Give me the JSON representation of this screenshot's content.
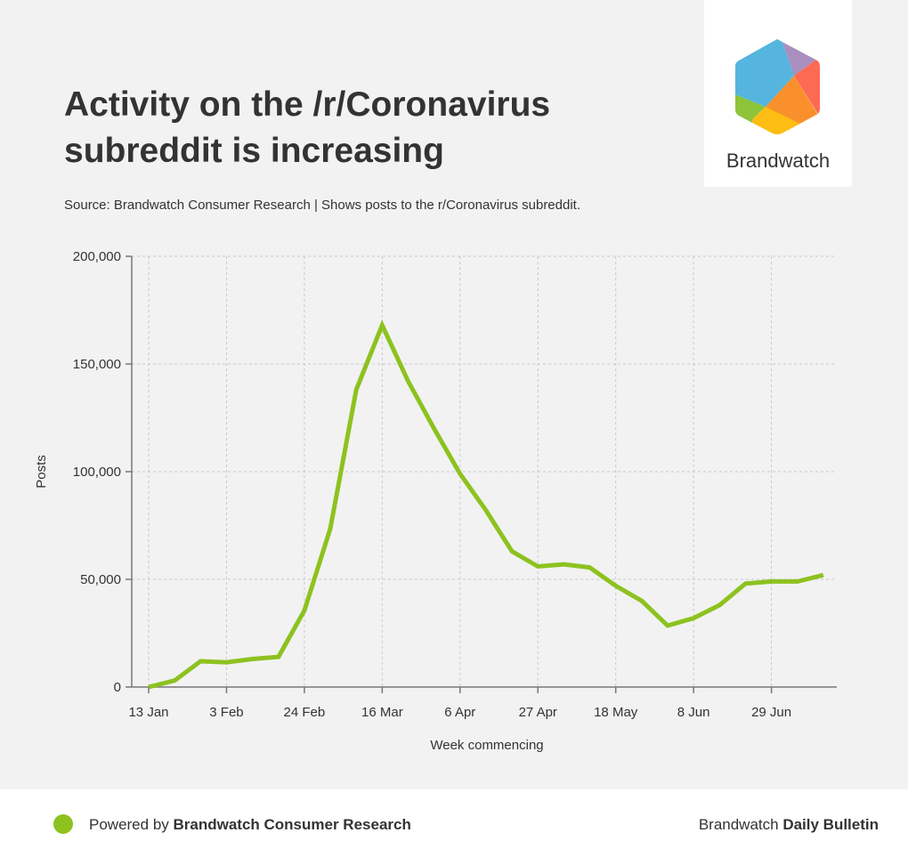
{
  "header": {
    "title": "Activity on the /r/Coronavirus subreddit is increasing",
    "source": "Source: Brandwatch Consumer Research | Shows posts to the r/Coronavirus subreddit."
  },
  "logo": {
    "text": "Brandwatch"
  },
  "footer": {
    "powered_prefix": "Powered by ",
    "powered_brand": "Brandwatch Consumer Research",
    "bulletin_prefix": "Brandwatch ",
    "bulletin_bold": "Daily Bulletin"
  },
  "colors": {
    "line": "#8dc21f",
    "grid": "#c8c8c8",
    "axis": "#777777"
  },
  "chart_data": {
    "type": "line",
    "title": "Activity on the /r/Coronavirus subreddit is increasing",
    "xlabel": "Week commencing",
    "ylabel": "Posts",
    "ylim": [
      0,
      200000
    ],
    "yticks": [
      0,
      50000,
      100000,
      150000,
      200000
    ],
    "ytick_labels": [
      "0",
      "50,000",
      "100,000",
      "150,000",
      "200,000"
    ],
    "xtick_labels": [
      "13 Jan",
      "3 Feb",
      "24 Feb",
      "16 Mar",
      "6 Apr",
      "27 Apr",
      "18 May",
      "8 Jun",
      "29 Jun"
    ],
    "xtick_every_weeks": 3,
    "grid": true,
    "series": [
      {
        "name": "Posts",
        "values": [
          0,
          3000,
          12000,
          11500,
          13000,
          14000,
          35500,
          73500,
          138000,
          168000,
          142000,
          120000,
          99000,
          82000,
          63000,
          56000,
          57000,
          55500,
          47000,
          40000,
          28500,
          32000,
          38000,
          48000,
          49000,
          49000,
          52000
        ]
      }
    ]
  }
}
